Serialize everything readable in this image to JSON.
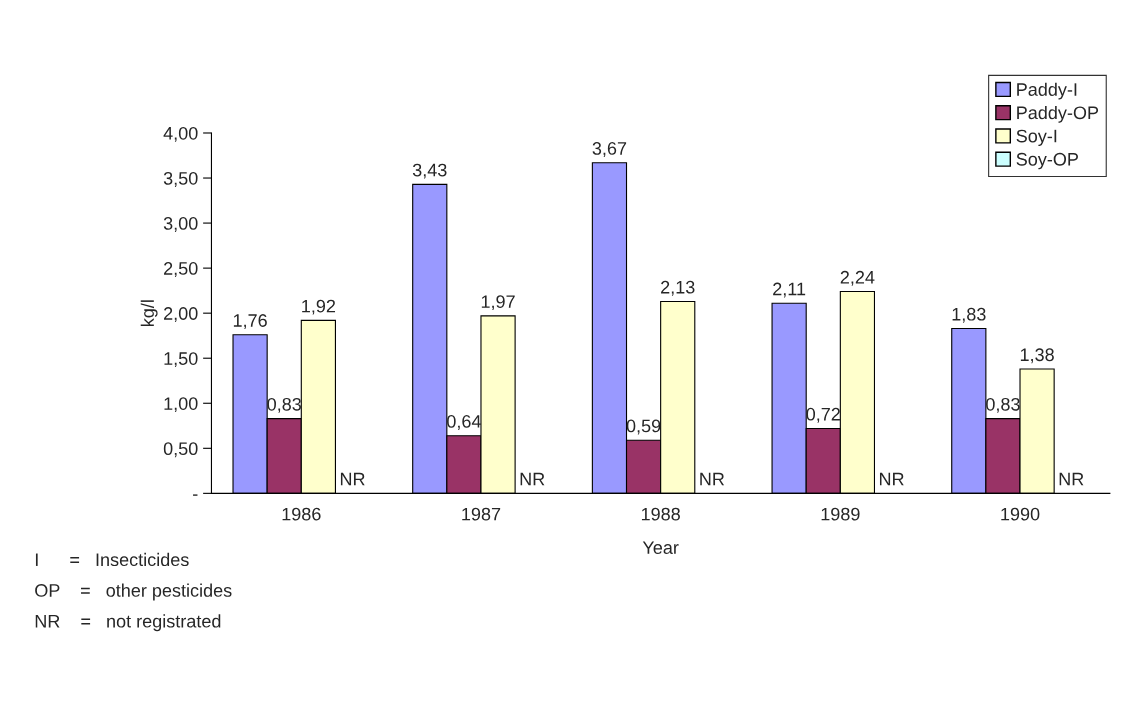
{
  "chart_data": {
    "type": "bar",
    "xlabel": "Year",
    "ylabel": "kg/l",
    "categories": [
      "1986",
      "1987",
      "1988",
      "1989",
      "1990"
    ],
    "series": [
      {
        "name": "Paddy-I",
        "color": "#9999ff",
        "values": [
          1.76,
          3.43,
          3.67,
          2.11,
          1.83
        ],
        "value_labels": [
          "1,76",
          "3,43",
          "3,67",
          "2,11",
          "1,83"
        ]
      },
      {
        "name": "Paddy-OP",
        "color": "#993366",
        "values": [
          0.83,
          0.64,
          0.59,
          0.72,
          0.83
        ],
        "value_labels": [
          "0,83",
          "0,64",
          "0,59",
          "0,72",
          "0,83"
        ]
      },
      {
        "name": "Soy-I",
        "color": "#ffffcc",
        "values": [
          1.92,
          1.97,
          2.13,
          2.24,
          1.38
        ],
        "value_labels": [
          "1,92",
          "1,97",
          "2,13",
          "2,24",
          "1,38"
        ]
      },
      {
        "name": "Soy-OP",
        "color": "#ccffff",
        "values": [
          null,
          null,
          null,
          null,
          null
        ],
        "value_labels": [
          "NR",
          "NR",
          "NR",
          "NR",
          "NR"
        ]
      }
    ],
    "ylim": [
      0,
      4
    ],
    "yticks": [
      {
        "value": 0,
        "label": "-"
      },
      {
        "value": 0.5,
        "label": "0,50"
      },
      {
        "value": 1,
        "label": "1,00"
      },
      {
        "value": 1.5,
        "label": "1,50"
      },
      {
        "value": 2,
        "label": "2,00"
      },
      {
        "value": 2.5,
        "label": "2,50"
      },
      {
        "value": 3,
        "label": "3,00"
      },
      {
        "value": 3.5,
        "label": "3,50"
      },
      {
        "value": 4,
        "label": "4,00"
      }
    ],
    "grid": false,
    "legend": "top right",
    "annotations": [
      "I      =   Insecticides",
      "OP    =   other pesticides",
      "NR    =   not registrated"
    ]
  }
}
